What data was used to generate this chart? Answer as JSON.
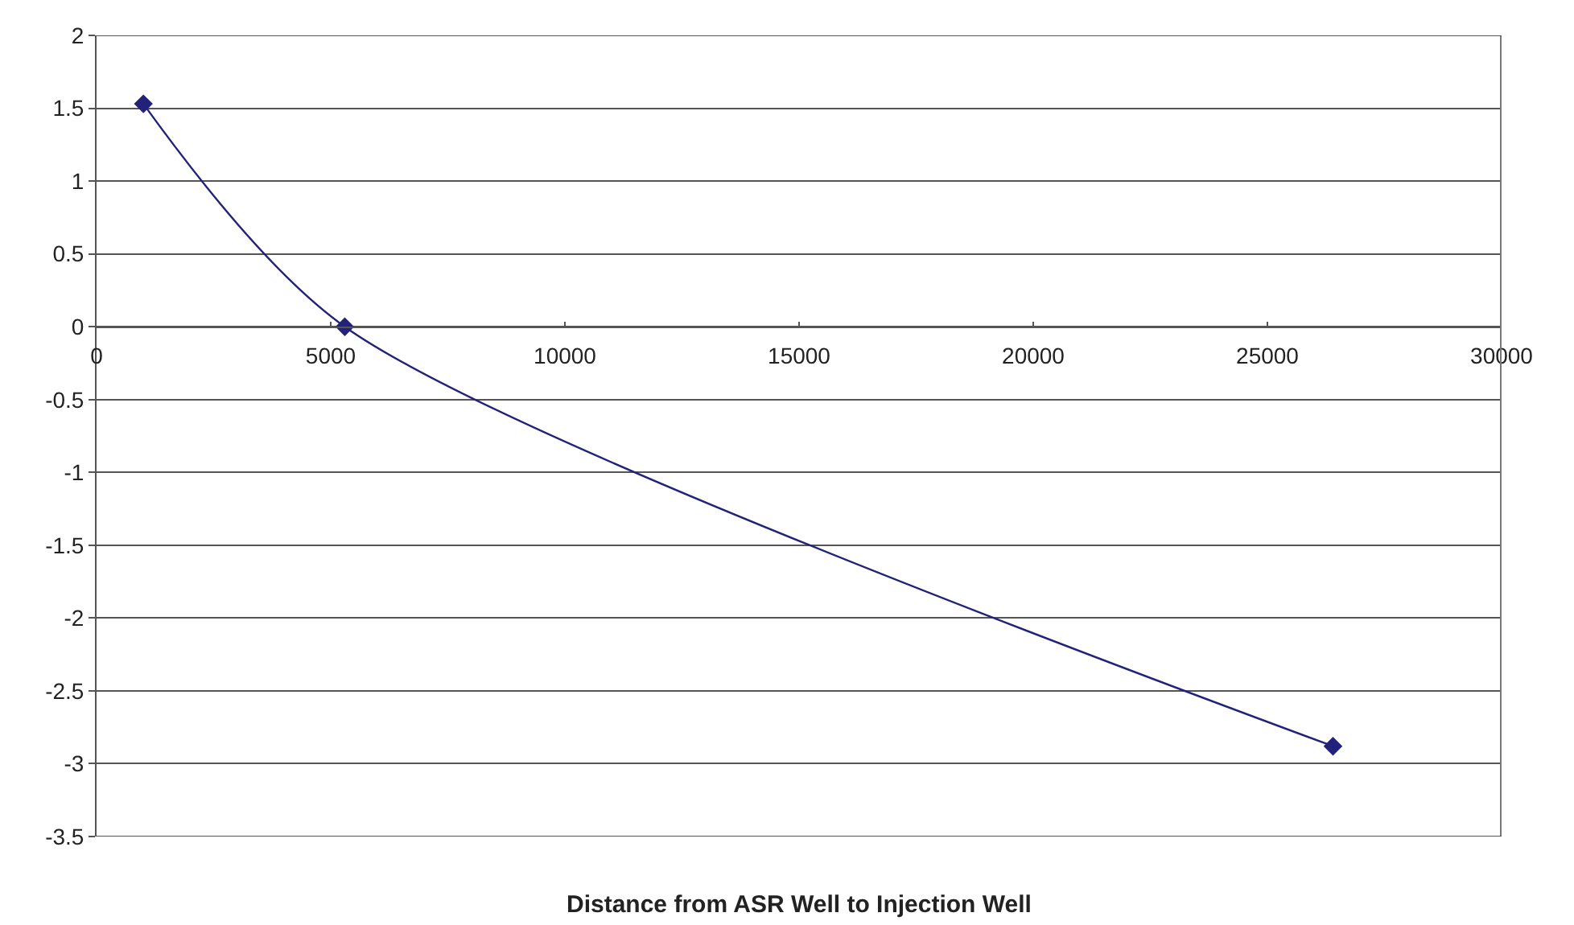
{
  "chart_data": {
    "type": "line",
    "xlabel": "Distance from ASR Well to Injection Well",
    "x": [
      1000,
      5300,
      26400
    ],
    "series": [
      {
        "color": "#22227a",
        "values": [
          1.53,
          0,
          -2.88
        ]
      }
    ],
    "xlim": [
      0,
      30000
    ],
    "xticks": [
      0,
      5000,
      10000,
      15000,
      20000,
      25000,
      30000
    ],
    "ylim": [
      -3.5,
      2
    ],
    "yticks": [
      -3.5,
      -3,
      -2.5,
      -2,
      -1.5,
      -1,
      -0.5,
      0,
      0.5,
      1,
      1.5,
      2
    ],
    "grid": "y",
    "marker": "diamond",
    "line_style": "solid"
  }
}
